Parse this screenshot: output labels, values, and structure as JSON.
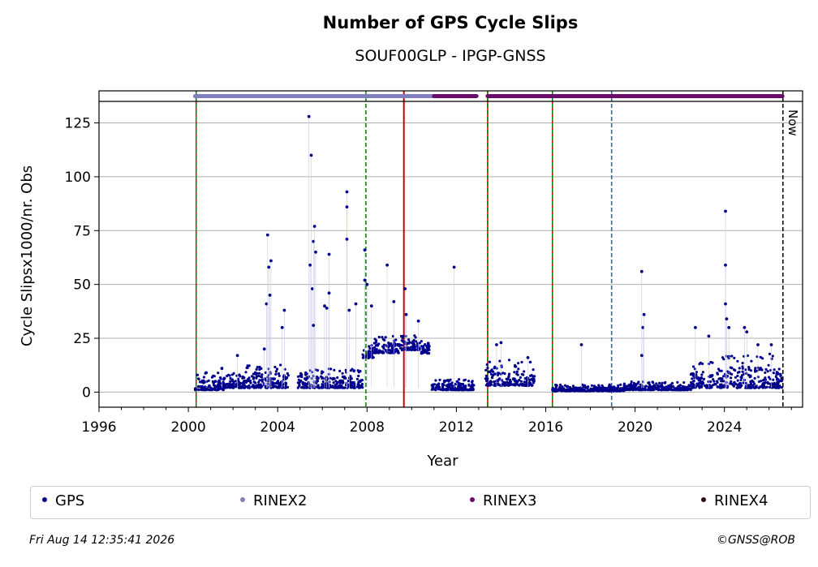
{
  "title": "Number of GPS Cycle Slips",
  "subtitle": "SOUF00GLP - IPGP-GNSS",
  "timestamp": "Fri Aug 14 12:35:41 2026",
  "copyright": "©GNSS@ROB",
  "now_label": "Now",
  "legend": [
    {
      "label": "GPS",
      "color": "#00008b"
    },
    {
      "label": "RINEX2",
      "color": "#8080c0"
    },
    {
      "label": "RINEX3",
      "color": "#6a0a6a"
    },
    {
      "label": "RINEX4",
      "color": "#2a0a1a"
    }
  ],
  "chart_data": {
    "type": "scatter",
    "title": "Number of GPS Cycle Slips",
    "subtitle": "SOUF00GLP - IPGP-GNSS",
    "xlabel": "Year",
    "ylabel": "Cycle Slipsx1000/nr. Obs",
    "xlim": [
      1996,
      2027.5
    ],
    "ylim": [
      -7,
      135
    ],
    "xticks": [
      1996,
      2000,
      2004,
      2008,
      2012,
      2016,
      2020,
      2024
    ],
    "yticks": [
      0,
      25,
      50,
      75,
      100,
      125
    ],
    "grid": "horizontal",
    "legend_position": "bottom",
    "series": [
      {
        "name": "GPS",
        "color": "#00008b",
        "peaks": [
          [
            2000.8,
            9
          ],
          [
            2001.5,
            11
          ],
          [
            2002.2,
            17
          ],
          [
            2003.4,
            20
          ],
          [
            2003.5,
            41
          ],
          [
            2003.55,
            73
          ],
          [
            2003.6,
            58
          ],
          [
            2003.7,
            61
          ],
          [
            2003.65,
            45
          ],
          [
            2004.3,
            38
          ],
          [
            2004.2,
            30
          ],
          [
            2005.4,
            128
          ],
          [
            2005.5,
            110
          ],
          [
            2005.45,
            59
          ],
          [
            2005.55,
            48
          ],
          [
            2005.6,
            70
          ],
          [
            2005.65,
            77
          ],
          [
            2005.7,
            65
          ],
          [
            2005.6,
            31
          ],
          [
            2006.1,
            40
          ],
          [
            2006.3,
            64
          ],
          [
            2006.3,
            46
          ],
          [
            2006.2,
            39
          ],
          [
            2007.1,
            93
          ],
          [
            2007.1,
            86
          ],
          [
            2007.1,
            71
          ],
          [
            2007.2,
            38
          ],
          [
            2007.9,
            66
          ],
          [
            2007.9,
            52
          ],
          [
            2008.0,
            50
          ],
          [
            2008.2,
            40
          ],
          [
            2007.5,
            41
          ],
          [
            2008.9,
            59
          ],
          [
            2009.2,
            42
          ],
          [
            2009.7,
            48
          ],
          [
            2009.75,
            36
          ],
          [
            2010.3,
            33
          ],
          [
            2011.9,
            58
          ],
          [
            2013.8,
            22
          ],
          [
            2014.0,
            23
          ],
          [
            2015.2,
            16
          ],
          [
            2017.6,
            22
          ],
          [
            2020.3,
            56
          ],
          [
            2020.35,
            30
          ],
          [
            2020.4,
            36
          ],
          [
            2020.3,
            17
          ],
          [
            2022.7,
            30
          ],
          [
            2023.3,
            26
          ],
          [
            2024.05,
            84
          ],
          [
            2024.05,
            59
          ],
          [
            2024.05,
            41
          ],
          [
            2024.1,
            34
          ],
          [
            2024.2,
            30
          ],
          [
            2024.9,
            30
          ],
          [
            2025.0,
            28
          ],
          [
            2025.5,
            22
          ],
          [
            2026.1,
            22
          ]
        ],
        "segments": [
          {
            "x": [
              2000.3,
              2001.6
            ],
            "y_base": 1,
            "spread": 8
          },
          {
            "x": [
              2001.6,
              2002.5
            ],
            "y_base": 2,
            "spread": 8
          },
          {
            "x": [
              2002.5,
              2004.5
            ],
            "y_base": 2,
            "spread": 12
          },
          {
            "x": [
              2004.9,
              2007.8
            ],
            "y_base": 2,
            "spread": 9
          },
          {
            "x": [
              2007.8,
              2008.3
            ],
            "y_base": 18,
            "spread": 6
          },
          {
            "x": [
              2008.3,
              2009.5
            ],
            "y_base": 21,
            "spread": 8
          },
          {
            "x": [
              2009.5,
              2010.3
            ],
            "y_base": 22,
            "spread": 7
          },
          {
            "x": [
              2010.3,
              2010.8
            ],
            "y_base": 20,
            "spread": 6
          },
          {
            "x": [
              2010.9,
              2012.8
            ],
            "y_base": 1,
            "spread": 5
          },
          {
            "x": [
              2013.3,
              2014.5
            ],
            "y_base": 3,
            "spread": 12
          },
          {
            "x": [
              2014.5,
              2015.5
            ],
            "y_base": 3,
            "spread": 11
          },
          {
            "x": [
              2016.3,
              2019.5
            ],
            "y_base": 0.5,
            "spread": 3
          },
          {
            "x": [
              2019.5,
              2022.5
            ],
            "y_base": 1,
            "spread": 4
          },
          {
            "x": [
              2022.5,
              2023.9
            ],
            "y_base": 2,
            "spread": 12
          },
          {
            "x": [
              2023.9,
              2026.6
            ],
            "y_base": 2,
            "spread": 16
          }
        ]
      }
    ],
    "rinex_coverage": [
      {
        "name": "RINEX2",
        "color": "#8080c0",
        "x": [
          2000.3,
          2011.0
        ]
      },
      {
        "name": "RINEX3",
        "color": "#6a0a6a",
        "x": [
          2011.0,
          2012.9
        ]
      },
      {
        "name": "RINEX3",
        "color": "#6a0a6a",
        "x": [
          2013.4,
          2026.6
        ]
      }
    ],
    "vertical_lines": [
      {
        "x": 2000.35,
        "style": "green-red-dashed"
      },
      {
        "x": 2007.95,
        "style": "green-dashed"
      },
      {
        "x": 2009.65,
        "style": "red-solid"
      },
      {
        "x": 2013.4,
        "style": "green-red-dashed"
      },
      {
        "x": 2016.3,
        "style": "green-red-dashed"
      },
      {
        "x": 2018.95,
        "style": "blue-dashed"
      },
      {
        "x": 2026.62,
        "style": "black-dashed-now"
      }
    ]
  }
}
